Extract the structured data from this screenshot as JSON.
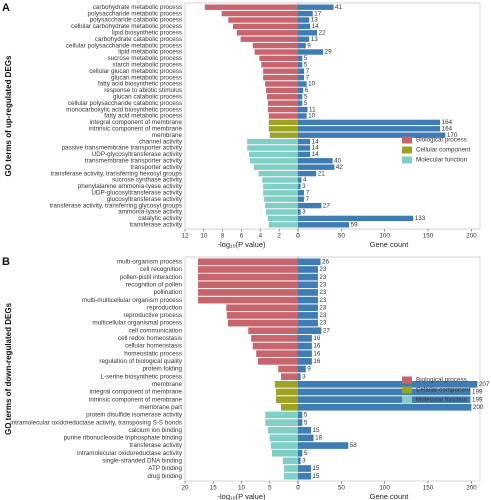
{
  "chart_data": [
    {
      "type": "bar",
      "panel_label": "A",
      "ylabel": "GO terms of up-regulated DEGs",
      "xlabel": "-log₁₀(P value)",
      "x2label": "Gene count",
      "xlim": [
        12,
        0
      ],
      "xticks": [
        12,
        10,
        8,
        6,
        4,
        2,
        0
      ],
      "x2lim": [
        0,
        210
      ],
      "x2ticks": [
        0,
        50,
        100,
        150,
        200
      ],
      "count_color": "#3f7cb4",
      "legend": "right",
      "groups": [
        {
          "name": "Biological process",
          "color": "#c8646c",
          "categories": [
            "carbohydrate metabolic process",
            "polysaccharide metabolic process",
            "polysaccharide catabolic process",
            "cellular carbohydrate metabolic process",
            "lipid biosynthetic process",
            "carbohydrate catabolic process",
            "cellular polysaccharide metabolic process",
            "lipid metabolic process",
            "sucrose metabolic process",
            "starch metabolic process",
            "cellular glucan metabolic process",
            "glucan metabolic process",
            "fatty acid biosynthetic process",
            "response to abiotic stimulus",
            "glucan catabolic process",
            "cellular polysaccharide catabolic process",
            "monocarboxylic acid biosynthetic process",
            "fatty acid metabolic process"
          ],
          "neg_log10_p": [
            9.9,
            8.1,
            7.4,
            6.9,
            6.5,
            6.1,
            4.8,
            4.6,
            4.1,
            3.9,
            3.7,
            3.7,
            3.5,
            3.4,
            3.3,
            3.2,
            3.2,
            3.1
          ],
          "gene_count": [
            41,
            17,
            13,
            14,
            22,
            13,
            9,
            29,
            5,
            5,
            7,
            7,
            10,
            6,
            5,
            5,
            11,
            10
          ]
        },
        {
          "name": "Cellular component",
          "color": "#9ea222",
          "categories": [
            "integral component of membrane",
            "intrinsic component of membrane",
            "membrane"
          ],
          "neg_log10_p": [
            3.1,
            3.1,
            3.0
          ],
          "gene_count": [
            164,
            164,
            170
          ]
        },
        {
          "name": "Molecular function",
          "color": "#7fcfc6",
          "categories": [
            "channel activity",
            "passive transmembrane transporter activity",
            "UDP-glycosyltransferase activity",
            "transmembrane transporter activity",
            "transporter activity",
            "transferase activity, transferring hexosyl groups",
            "sucrose synthase activity",
            "phenylalanine ammonia-lyase activity",
            "UDP-glucosyltransferase activity",
            "glucosyltransferase activity",
            "transferase activity, transferring glycosyl groups",
            "ammonia-lyase activity",
            "catalytic activity",
            "transferase activity"
          ],
          "neg_log10_p": [
            5.4,
            5.4,
            5.2,
            5.1,
            4.7,
            4.2,
            3.8,
            3.7,
            3.7,
            3.6,
            3.5,
            3.4,
            3.2,
            3.1
          ],
          "gene_count": [
            14,
            14,
            14,
            40,
            42,
            21,
            4,
            3,
            7,
            7,
            27,
            3,
            133,
            59
          ]
        }
      ]
    },
    {
      "type": "bar",
      "panel_label": "B",
      "ylabel": "GO terms of down-regulated DEGs",
      "xlabel": "-log₁₀(P value)",
      "x2label": "Gene count",
      "xlim": [
        20,
        0
      ],
      "xticks": [
        20,
        15,
        10,
        5,
        0
      ],
      "x2lim": [
        0,
        210
      ],
      "x2ticks": [
        0,
        50,
        100,
        150,
        200
      ],
      "count_color": "#3f7cb4",
      "legend": "right",
      "groups": [
        {
          "name": "Biological process",
          "color": "#c8646c",
          "categories": [
            "multi-organism process",
            "cell recognition",
            "pollen-pistil interaction",
            "recognition of pollen",
            "pollination",
            "multi-multicellular organism process",
            "reproduction",
            "reproductive process",
            "multicellular organismal process",
            "cell communication",
            "cell redox homeostasis",
            "cellular homeostasis",
            "homeostatic process",
            "regulation of biological quality",
            "protein folding",
            "L-serine biosynthetic process"
          ],
          "neg_log10_p": [
            17.7,
            17.7,
            17.7,
            17.7,
            17.7,
            17.7,
            12.7,
            12.6,
            12.4,
            8.8,
            8.3,
            8.0,
            7.4,
            7.1,
            3.5,
            3.0
          ],
          "gene_count": [
            26,
            23,
            23,
            23,
            23,
            23,
            23,
            23,
            23,
            27,
            16,
            16,
            16,
            16,
            9,
            3
          ]
        },
        {
          "name": "Cellular component",
          "color": "#9ea222",
          "categories": [
            "membrane",
            "integral component of membrane",
            "intrinsic component of membrane",
            "membrane part"
          ],
          "neg_log10_p": [
            4.1,
            3.9,
            3.9,
            3.0
          ],
          "gene_count": [
            207,
            199,
            199,
            200
          ]
        },
        {
          "name": "Molecular function",
          "color": "#7fcfc6",
          "categories": [
            "protein disulfide isomerase activity",
            "intramolecular oxidoreductase activity, transposing S-S bonds",
            "calcium ion binding",
            "purine ribonucleoside triphosphate binding",
            "transferase activity",
            "intramolecular oxidoreductase activity",
            "single-stranded DNA binding",
            "ATP binding",
            "drug binding"
          ],
          "neg_log10_p": [
            5.8,
            5.8,
            5.3,
            5.0,
            4.8,
            4.6,
            2.7,
            2.5,
            2.5
          ],
          "gene_count": [
            5,
            5,
            15,
            18,
            58,
            5,
            3,
            15,
            15
          ]
        }
      ]
    }
  ]
}
